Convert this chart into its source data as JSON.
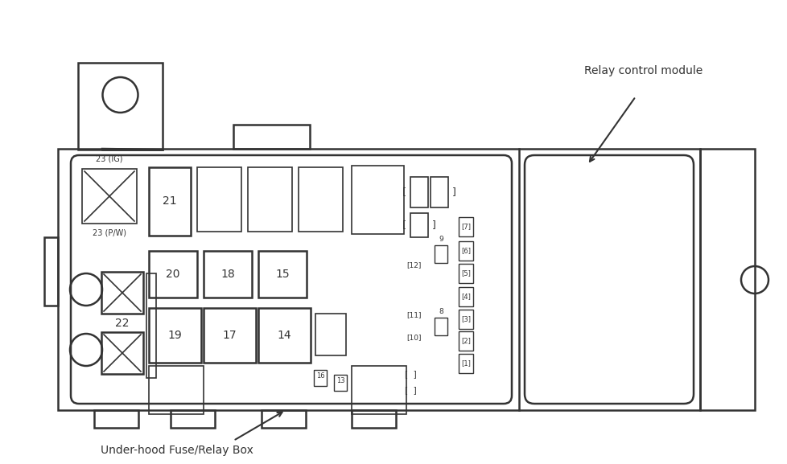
{
  "bg_color": "#ffffff",
  "line_color": "#333333",
  "label_relay_module": "Relay control module",
  "label_fuse_box": "Under-hood Fuse/Relay Box",
  "fig_w": 9.79,
  "fig_h": 5.77,
  "dpi": 100
}
